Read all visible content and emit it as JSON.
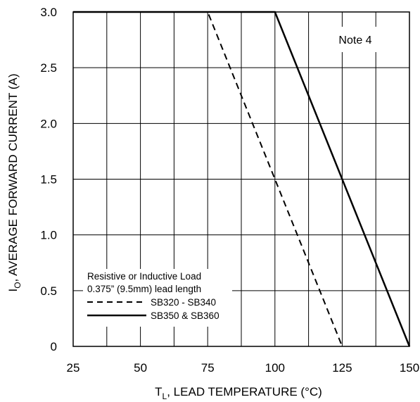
{
  "chart_data": {
    "type": "line",
    "title": "",
    "xlabel": {
      "main": "T",
      "sub": "L",
      "rest": ",  LEAD TEMPERATURE (°C)"
    },
    "ylabel": {
      "main": "I",
      "sub": "O",
      "rest": ", AVERAGE FORWARD CURRENT (A)"
    },
    "xlim": [
      25,
      150
    ],
    "ylim": [
      0,
      3.0
    ],
    "x_ticks": [
      "25",
      "50",
      "75",
      "100",
      "125",
      "150"
    ],
    "y_ticks": [
      "0",
      "0.5",
      "1.0",
      "1.5",
      "2.0",
      "2.5",
      "3.0"
    ],
    "grid": true,
    "annotation": "Note 4",
    "legend": {
      "placement": "bottom-left",
      "header_lines": [
        "Resistive or Inductive Load",
        "0.375” (9.5mm) lead length"
      ]
    },
    "series": [
      {
        "name": "SB320 - SB340",
        "style": "dashed",
        "x": [
          25,
          75,
          125
        ],
        "y": [
          3.0,
          3.0,
          0
        ]
      },
      {
        "name": "SB350 & SB360",
        "style": "solid",
        "x": [
          25,
          100,
          150
        ],
        "y": [
          3.0,
          3.0,
          0
        ]
      }
    ]
  }
}
